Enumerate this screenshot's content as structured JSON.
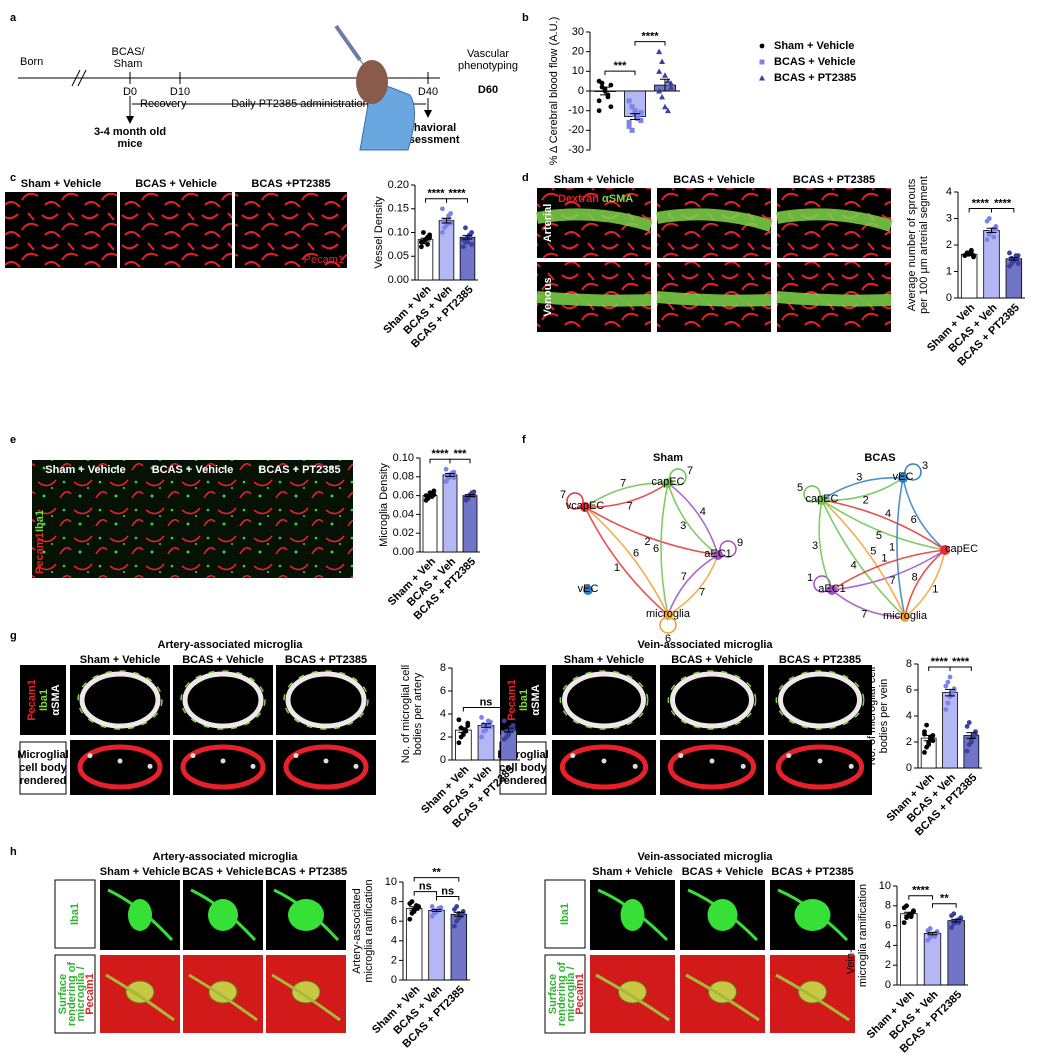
{
  "panel_letters": [
    "a",
    "b",
    "c",
    "d",
    "e",
    "f",
    "g",
    "h"
  ],
  "timeline": {
    "born": "Born",
    "surgery": [
      "BCAS/",
      "Sham"
    ],
    "days": [
      "D0",
      "D10",
      "D40",
      "D60"
    ],
    "recovery": "Recovery",
    "treatment": "Daily PT2385 administration",
    "mice": [
      "3-4 month old",
      "mice"
    ],
    "behavior": [
      "Behavioral",
      "assessment"
    ],
    "phenotyping": [
      "Vascular",
      "phenotyping"
    ]
  },
  "images": {
    "c": {
      "columns": [
        "Sham + Vehicle",
        "BCAS + Vehicle",
        "BCAS +PT2385"
      ],
      "stain": "Pecam1"
    },
    "d": {
      "columns": [
        "Sham + Vehicle",
        "BCAS + Vehicle",
        "BCAS + PT2385"
      ],
      "rows": [
        "Arterial",
        "Venous"
      ],
      "stains": [
        "Dextran",
        "αSMA"
      ]
    },
    "e": {
      "columns": [
        "Sham + Vehicle",
        "BCAS + Vehicle",
        "BCAS + PT2385"
      ],
      "stains": [
        "Pecam1",
        "Iba1"
      ]
    },
    "g_artery": {
      "title": "Artery-associated microglia",
      "columns": [
        "Sham + Vehicle",
        "BCAS + Vehicle",
        "BCAS + PT2385"
      ],
      "stains": [
        "Pecam1",
        "Iba1",
        "αSMA"
      ],
      "row2": [
        "Microglial",
        "cell body",
        "rendered"
      ]
    },
    "g_vein": {
      "title": "Vein-associated microglia",
      "columns": [
        "Sham + Vehicle",
        "BCAS + Vehicle",
        "BCAS + PT2385"
      ],
      "stains": [
        "Pecam1",
        "Iba1",
        "αSMA"
      ],
      "row2": [
        "Microglial",
        "cell body",
        "rendered"
      ]
    },
    "h_artery": {
      "title": "Artery-associated microglia",
      "columns": [
        "Sham + Vehicle",
        "BCAS + Vehicle",
        "BCAS + PT2385"
      ],
      "row1": "Iba1",
      "row2": [
        "Surface",
        "rendering of",
        "microglia /",
        "Pecam1"
      ]
    },
    "h_vein": {
      "title": "Vein-associated microglia",
      "columns": [
        "Sham + Vehicle",
        "BCAS + Vehicle",
        "BCAS + PT2385"
      ],
      "row1": "Iba1",
      "row2": [
        "Surface",
        "rendering of",
        "microglia /",
        "Pecam1"
      ]
    }
  },
  "networks": [
    {
      "title": "Sham",
      "nodes": [
        {
          "label": "capEC",
          "color": "#6cc24a"
        },
        {
          "label": "vcapEC",
          "color": "#e53030"
        },
        {
          "label": "aEC1",
          "color": "#a24fc2"
        },
        {
          "label": "microglia",
          "color": "#f0a030"
        },
        {
          "label": "vEC",
          "color": "#2f7fc1"
        }
      ],
      "edges": [
        {
          "from": 0,
          "to": 0,
          "weight": 7
        },
        {
          "from": 1,
          "to": 1,
          "weight": 7
        },
        {
          "from": 2,
          "to": 2,
          "weight": 9
        },
        {
          "from": 3,
          "to": 3,
          "weight": 6
        },
        {
          "from": 1,
          "to": 0,
          "weight": 7
        },
        {
          "from": 0,
          "to": 1,
          "weight": 7
        },
        {
          "from": 1,
          "to": 2,
          "weight": 2
        },
        {
          "from": 0,
          "to": 2,
          "weight": 3
        },
        {
          "from": 2,
          "to": 0,
          "weight": 4
        },
        {
          "from": 1,
          "to": 3,
          "weight": 1
        },
        {
          "from": 3,
          "to": 1,
          "weight": 6
        },
        {
          "from": 0,
          "to": 3,
          "weight": 6
        },
        {
          "from": 2,
          "to": 3,
          "weight": 7
        },
        {
          "from": 3,
          "to": 2,
          "weight": 7
        }
      ]
    },
    {
      "title": "BCAS",
      "nodes": [
        {
          "label": "vEC",
          "color": "#2f7fc1"
        },
        {
          "label": "capEC",
          "color": "#6cc24a"
        },
        {
          "label": "capEC",
          "color": "#e53030"
        },
        {
          "label": "aEC1",
          "color": "#a24fc2"
        },
        {
          "label": "microglia",
          "color": "#f0a030"
        }
      ],
      "edges": [
        {
          "from": 0,
          "to": 0,
          "weight": 3
        },
        {
          "from": 1,
          "to": 1,
          "weight": 5
        },
        {
          "from": 3,
          "to": 3,
          "weight": 1
        },
        {
          "from": 0,
          "to": 1,
          "weight": 3
        },
        {
          "from": 1,
          "to": 0,
          "weight": 2
        },
        {
          "from": 0,
          "to": 2,
          "weight": 6
        },
        {
          "from": 1,
          "to": 2,
          "weight": 5
        },
        {
          "from": 2,
          "to": 1,
          "weight": 4
        },
        {
          "from": 1,
          "to": 3,
          "weight": 3
        },
        {
          "from": 3,
          "to": 2,
          "weight": 7
        },
        {
          "from": 1,
          "to": 4,
          "weight": 4
        },
        {
          "from": 4,
          "to": 1,
          "weight": 5
        },
        {
          "from": 0,
          "to": 4,
          "weight": 1
        },
        {
          "from": 2,
          "to": 4,
          "weight": 8
        },
        {
          "from": 3,
          "to": 4,
          "weight": 7
        },
        {
          "from": 4,
          "to": 2,
          "weight": 1
        },
        {
          "from": 2,
          "to": 3,
          "weight": 1
        }
      ]
    }
  ],
  "chart_data": [
    {
      "type": "bar",
      "ylabel": [
        "% Δ Cerebral blood flow (A.U.)"
      ],
      "categories": [
        "Sham + Vehicle",
        "BCAS + Vehicle",
        "BCAS + PT2385"
      ],
      "category_labels": "legend",
      "values": [
        0,
        -13,
        3
      ],
      "errors": [
        2,
        1.5,
        3
      ],
      "points": [
        [
          5,
          2,
          0,
          -3,
          -8,
          -10,
          4,
          1,
          -2,
          3,
          -5
        ],
        [
          -5,
          -8,
          -10,
          -13,
          -15,
          -18,
          -20,
          -12,
          -14,
          -11,
          -16
        ],
        [
          20,
          15,
          8,
          5,
          2,
          0,
          -3,
          -8,
          -10,
          4,
          10
        ]
      ],
      "colors": [
        "#ffffff",
        "#b3b8f5",
        "#7075c8"
      ],
      "point_colors": [
        "#000000",
        "#7b83eb",
        "#3a3fa0"
      ],
      "markers": [
        "circle",
        "square",
        "triangle"
      ],
      "ylim": [
        -30,
        30
      ],
      "yticks": [
        -30,
        -20,
        -10,
        0,
        10,
        20,
        30
      ],
      "brackets": [
        {
          "label": "***",
          "from": 0,
          "to": 1
        },
        {
          "label": "****",
          "from": 1,
          "to": 2
        }
      ]
    },
    {
      "type": "bar",
      "ylabel": [
        "Vessel Density"
      ],
      "categories": [
        "Sham + Veh",
        "BCAS + Veh",
        "BCAS + PT2385"
      ],
      "category_labels": "axis",
      "values": [
        0.085,
        0.125,
        0.09
      ],
      "errors": [
        0.003,
        0.005,
        0.004
      ],
      "points": [
        [
          0.07,
          0.08,
          0.085,
          0.09,
          0.095,
          0.08,
          0.1,
          0.085,
          0.075,
          0.09
        ],
        [
          0.1,
          0.11,
          0.12,
          0.13,
          0.14,
          0.15,
          0.125,
          0.115,
          0.135,
          0.12
        ],
        [
          0.07,
          0.08,
          0.09,
          0.095,
          0.1,
          0.085,
          0.11,
          0.08,
          0.09,
          0.075
        ]
      ],
      "colors": [
        "#ffffff",
        "#b3b8f5",
        "#7075c8"
      ],
      "point_colors": [
        "#000000",
        "#7b83eb",
        "#3a3fa0"
      ],
      "ylim": [
        0,
        0.2
      ],
      "yticks": [
        {
          "value": 0,
          "label": "0.00"
        },
        0.05,
        {
          "value": 0.1,
          "label": "0.10"
        },
        0.15,
        {
          "value": 0.2,
          "label": "0.20"
        }
      ],
      "brackets": [
        {
          "label": "****",
          "from": 0,
          "to": 1
        },
        {
          "label": "****",
          "from": 1,
          "to": 2
        }
      ]
    },
    {
      "type": "bar",
      "ylabel": [
        "Average number of sprouts",
        "per 100 µm arterial segment"
      ],
      "categories": [
        "Sham + Veh",
        "BCAS + Veh",
        "BCAS + PT2385"
      ],
      "category_labels": "axis",
      "values": [
        1.65,
        2.55,
        1.48
      ],
      "errors": [
        0.03,
        0.08,
        0.05
      ],
      "points": [
        [
          1.6,
          1.65,
          1.7,
          1.75,
          1.55,
          1.6,
          1.7,
          1.65,
          1.8,
          1.6
        ],
        [
          2.2,
          2.4,
          2.5,
          2.6,
          2.7,
          2.9,
          3.0,
          2.5,
          2.3,
          2.6
        ],
        [
          1.2,
          1.3,
          1.4,
          1.5,
          1.6,
          1.7,
          1.5,
          1.4,
          1.6,
          1.3
        ]
      ],
      "colors": [
        "#ffffff",
        "#b3b8f5",
        "#7075c8"
      ],
      "point_colors": [
        "#000000",
        "#7b83eb",
        "#3a3fa0"
      ],
      "ylim": [
        0,
        4
      ],
      "yticks": [
        0,
        1,
        2,
        3,
        4
      ],
      "brackets": [
        {
          "label": "****",
          "from": 0,
          "to": 1
        },
        {
          "label": "****",
          "from": 1,
          "to": 2
        }
      ]
    },
    {
      "type": "bar",
      "ylabel": [
        "Microglia Density"
      ],
      "categories": [
        "Sham + Veh",
        "BCAS + Veh",
        "BCAS + PT2385"
      ],
      "category_labels": "axis",
      "values": [
        0.06,
        0.082,
        0.06
      ],
      "errors": [
        0.001,
        0.0015,
        0.001
      ],
      "points": [
        [
          0.055,
          0.058,
          0.06,
          0.062,
          0.065,
          0.06,
          0.057,
          0.063,
          0.059,
          0.061
        ],
        [
          0.075,
          0.078,
          0.08,
          0.083,
          0.085,
          0.088,
          0.082,
          0.08,
          0.084,
          0.079
        ],
        [
          0.055,
          0.058,
          0.06,
          0.062,
          0.064,
          0.059,
          0.057,
          0.061,
          0.063,
          0.06
        ]
      ],
      "colors": [
        "#ffffff",
        "#b3b8f5",
        "#7075c8"
      ],
      "point_colors": [
        "#000000",
        "#7b83eb",
        "#3a3fa0"
      ],
      "ylim": [
        0,
        0.1
      ],
      "yticks": [
        {
          "value": 0,
          "label": "0.00"
        },
        0.02,
        0.04,
        0.06,
        0.08,
        {
          "value": 0.1,
          "label": "0.10"
        }
      ],
      "brackets": [
        {
          "label": "****",
          "from": 0,
          "to": 1
        },
        {
          "label": "***",
          "from": 1,
          "to": 2
        }
      ]
    },
    {
      "type": "bar",
      "ylabel": [
        "No. of microglial cell",
        "bodies per artery"
      ],
      "categories": [
        "Sham + Veh",
        "BCAS + Veh",
        "BCAS + PT2385"
      ],
      "category_labels": "axis",
      "values": [
        2.6,
        3.0,
        2.6
      ],
      "errors": [
        0.2,
        0.15,
        0.17
      ],
      "points": [
        [
          1.5,
          2,
          2.3,
          2.6,
          3,
          3.5,
          2.8,
          2.2,
          2.5,
          3.2
        ],
        [
          2,
          2.5,
          2.8,
          3,
          3.3,
          3.7,
          3.1,
          2.6,
          3.4,
          2.9
        ],
        [
          1.8,
          2,
          2.3,
          2.6,
          3,
          3.4,
          2.5,
          2.2,
          2.8,
          2.7
        ]
      ],
      "colors": [
        "#ffffff",
        "#b3b8f5",
        "#7075c8"
      ],
      "point_colors": [
        "#000000",
        "#7b83eb",
        "#3a3fa0"
      ],
      "ylim": [
        0,
        8
      ],
      "yticks": [
        0,
        2,
        4,
        6,
        8
      ],
      "brackets": [
        {
          "label": "ns",
          "from": 0,
          "to": 2
        }
      ]
    },
    {
      "type": "bar",
      "ylabel": [
        "No. of microglial cell",
        "bodies per vein"
      ],
      "categories": [
        "Sham + Veh",
        "BCAS + Veh",
        "BCAS + PT2385"
      ],
      "category_labels": "axis",
      "values": [
        2.3,
        5.8,
        2.5
      ],
      "errors": [
        0.2,
        0.25,
        0.22
      ],
      "points": [
        [
          1.2,
          1.6,
          2,
          2.2,
          2.5,
          2.8,
          3.3,
          1.8,
          2.4,
          2.1,
          2.6
        ],
        [
          4.5,
          5,
          5.5,
          5.8,
          6,
          6.3,
          6.6,
          7,
          5.6,
          6.1
        ],
        [
          1.3,
          1.8,
          2.2,
          2.5,
          2.8,
          3.2,
          3.5,
          2,
          2.4,
          2.6
        ]
      ],
      "colors": [
        "#ffffff",
        "#b3b8f5",
        "#7075c8"
      ],
      "point_colors": [
        "#000000",
        "#7b83eb",
        "#3a3fa0"
      ],
      "ylim": [
        0,
        8
      ],
      "yticks": [
        0,
        2,
        4,
        6,
        8
      ],
      "brackets": [
        {
          "label": "****",
          "from": 0,
          "to": 1
        },
        {
          "label": "****",
          "from": 1,
          "to": 2
        }
      ]
    },
    {
      "type": "bar",
      "ylabel": [
        "Artery-associated",
        "microglia ramification"
      ],
      "categories": [
        "Sham + Veh",
        "BCAS + Veh",
        "BCAS + PT2385"
      ],
      "category_labels": "axis",
      "values": [
        7.3,
        7.1,
        6.7
      ],
      "errors": [
        0.18,
        0.1,
        0.2
      ],
      "points": [
        [
          6.2,
          6.8,
          7,
          7.3,
          7.5,
          7.8,
          8,
          7.2,
          7.6,
          7.4
        ],
        [
          6.5,
          6.8,
          7,
          7.2,
          7.4,
          7.5,
          7.1,
          6.9,
          7.3,
          7.2
        ],
        [
          5.5,
          6,
          6.3,
          6.6,
          6.9,
          7.2,
          7.5,
          6.8,
          6.5,
          7
        ]
      ],
      "colors": [
        "#ffffff",
        "#b3b8f5",
        "#7075c8"
      ],
      "point_colors": [
        "#000000",
        "#7b83eb",
        "#3a3fa0"
      ],
      "ylim": [
        0,
        10
      ],
      "yticks": [
        0,
        2,
        4,
        6,
        8,
        10
      ],
      "brackets": [
        {
          "label": "ns",
          "from": 0,
          "to": 1
        },
        {
          "label": "ns",
          "from": 1,
          "to": 2
        },
        {
          "label": "**",
          "from": 0,
          "to": 2
        }
      ]
    },
    {
      "type": "bar",
      "ylabel": [
        "Vein-associated",
        "microglia ramification"
      ],
      "categories": [
        "Sham + Veh",
        "BCAS + Veh",
        "BCAS + PT2385"
      ],
      "category_labels": "axis",
      "values": [
        7.2,
        5.2,
        6.5
      ],
      "errors": [
        0.15,
        0.12,
        0.13
      ],
      "points": [
        [
          6.3,
          6.8,
          7,
          7.2,
          7.5,
          7.8,
          8,
          7.1,
          6.9,
          7.4
        ],
        [
          4.5,
          4.8,
          5,
          5.2,
          5.3,
          5.5,
          5.7,
          5.1,
          4.9,
          5.4
        ],
        [
          5.8,
          6.2,
          6.4,
          6.6,
          6.8,
          7,
          7.2,
          6.5,
          6.3,
          6.7
        ]
      ],
      "colors": [
        "#ffffff",
        "#b3b8f5",
        "#7075c8"
      ],
      "point_colors": [
        "#000000",
        "#7b83eb",
        "#3a3fa0"
      ],
      "ylim": [
        0,
        10
      ],
      "yticks": [
        0,
        2,
        4,
        6,
        8,
        10
      ],
      "brackets": [
        {
          "label": "****",
          "from": 0,
          "to": 1
        },
        {
          "label": "**",
          "from": 1,
          "to": 2
        }
      ]
    }
  ]
}
